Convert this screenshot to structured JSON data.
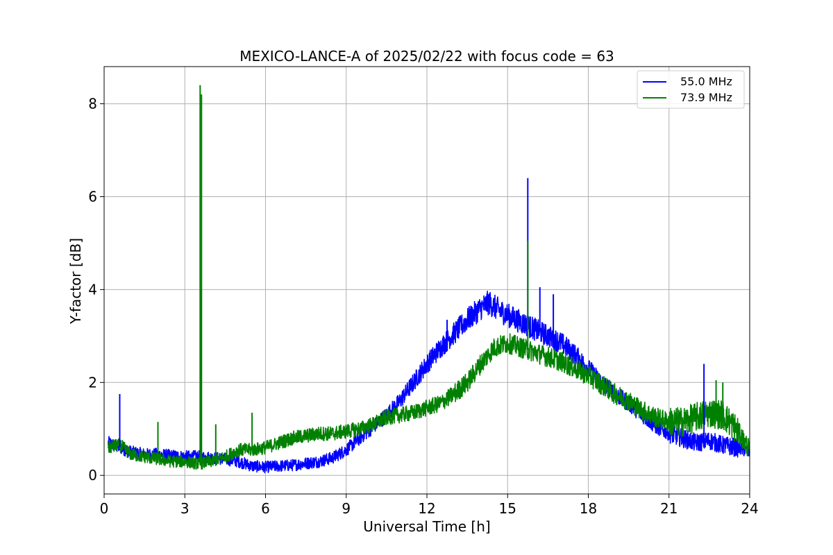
{
  "chart_data": {
    "type": "line",
    "title": "MEXICO-LANCE-A of 2025/02/22 with focus code = 63",
    "xlabel": "Universal Time [h]",
    "ylabel": "Y-factor [dB]",
    "xlim": [
      0,
      24
    ],
    "ylim": [
      -0.4,
      8.8
    ],
    "xticks": [
      0,
      3,
      6,
      9,
      12,
      15,
      18,
      21,
      24
    ],
    "yticks": [
      0,
      2,
      4,
      6,
      8
    ],
    "grid": true,
    "legend_position": "top-right",
    "series": [
      {
        "name": "55.0 MHz",
        "color": "#0000ff",
        "x": [
          0.15,
          0.6,
          1.0,
          1.5,
          2.0,
          2.5,
          3.0,
          3.5,
          4.0,
          4.5,
          5.0,
          5.5,
          6.0,
          6.5,
          7.0,
          7.5,
          8.0,
          8.5,
          9.0,
          9.5,
          10.0,
          10.5,
          11.0,
          11.5,
          12.0,
          12.5,
          13.0,
          13.5,
          14.0,
          14.3,
          14.7,
          15.0,
          15.5,
          16.0,
          16.5,
          17.0,
          17.5,
          18.0,
          18.5,
          19.0,
          19.5,
          20.0,
          20.5,
          21.0,
          21.5,
          22.0,
          22.5,
          23.0,
          23.5,
          24.0
        ],
        "y": [
          0.7,
          0.6,
          0.5,
          0.45,
          0.45,
          0.42,
          0.4,
          0.4,
          0.38,
          0.35,
          0.3,
          0.2,
          0.18,
          0.2,
          0.22,
          0.26,
          0.3,
          0.38,
          0.55,
          0.8,
          1.05,
          1.3,
          1.6,
          2.0,
          2.4,
          2.75,
          3.05,
          3.35,
          3.6,
          3.72,
          3.55,
          3.45,
          3.3,
          3.15,
          3.0,
          2.85,
          2.6,
          2.3,
          2.0,
          1.75,
          1.55,
          1.3,
          1.05,
          0.9,
          0.8,
          0.7,
          0.75,
          0.65,
          0.6,
          0.5
        ]
      },
      {
        "name": "73.9 MHz",
        "color": "#008000",
        "x": [
          0.15,
          0.6,
          1.0,
          1.5,
          2.0,
          2.5,
          3.0,
          3.5,
          4.0,
          4.5,
          5.0,
          5.5,
          6.0,
          6.5,
          7.0,
          7.5,
          8.0,
          8.5,
          9.0,
          9.5,
          10.0,
          10.5,
          11.0,
          11.5,
          12.0,
          12.5,
          13.0,
          13.5,
          14.0,
          14.5,
          15.0,
          15.5,
          16.0,
          16.5,
          17.0,
          17.5,
          18.0,
          18.5,
          19.0,
          19.5,
          20.0,
          20.5,
          21.0,
          21.5,
          22.0,
          22.5,
          23.0,
          23.5,
          24.0
        ],
        "y": [
          0.6,
          0.65,
          0.45,
          0.4,
          0.35,
          0.3,
          0.3,
          0.25,
          0.3,
          0.4,
          0.55,
          0.55,
          0.6,
          0.7,
          0.8,
          0.85,
          0.9,
          0.9,
          0.95,
          1.0,
          1.1,
          1.25,
          1.3,
          1.35,
          1.45,
          1.55,
          1.75,
          2.0,
          2.4,
          2.75,
          2.85,
          2.75,
          2.65,
          2.55,
          2.45,
          2.3,
          2.15,
          1.95,
          1.75,
          1.6,
          1.4,
          1.25,
          1.15,
          1.15,
          1.25,
          1.35,
          1.3,
          1.0,
          0.55
        ]
      }
    ],
    "spikes": [
      {
        "series": "55.0 MHz",
        "x": 0.58,
        "y": 1.75
      },
      {
        "series": "55.0 MHz",
        "x": 3.6,
        "y": 4.0
      },
      {
        "series": "55.0 MHz",
        "x": 12.75,
        "y": 3.35
      },
      {
        "series": "55.0 MHz",
        "x": 15.75,
        "y": 6.4
      },
      {
        "series": "55.0 MHz",
        "x": 16.2,
        "y": 4.05
      },
      {
        "series": "55.0 MHz",
        "x": 16.7,
        "y": 3.9
      },
      {
        "series": "55.0 MHz",
        "x": 22.3,
        "y": 2.4
      },
      {
        "series": "73.9 MHz",
        "x": 2.0,
        "y": 1.15
      },
      {
        "series": "73.9 MHz",
        "x": 3.57,
        "y": 8.4
      },
      {
        "series": "73.9 MHz",
        "x": 3.62,
        "y": 8.2
      },
      {
        "series": "73.9 MHz",
        "x": 4.15,
        "y": 1.1
      },
      {
        "series": "73.9 MHz",
        "x": 5.5,
        "y": 1.35
      },
      {
        "series": "73.9 MHz",
        "x": 15.75,
        "y": 5.05
      },
      {
        "series": "73.9 MHz",
        "x": 22.75,
        "y": 2.05
      },
      {
        "series": "73.9 MHz",
        "x": 23.0,
        "y": 2.0
      }
    ]
  }
}
